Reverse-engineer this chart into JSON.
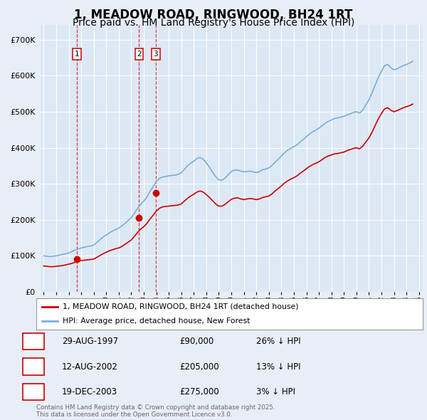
{
  "title": "1, MEADOW ROAD, RINGWOOD, BH24 1RT",
  "subtitle": "Price paid vs. HM Land Registry's House Price Index (HPI)",
  "title_fontsize": 12,
  "subtitle_fontsize": 10,
  "ytick_vals": [
    0,
    100000,
    200000,
    300000,
    400000,
    500000,
    600000,
    700000
  ],
  "ylim": [
    0,
    740000
  ],
  "sale_date_nums": [
    1997.667,
    2002.625,
    2003.958
  ],
  "sale_prices": [
    90000,
    205000,
    275000
  ],
  "sale_labels": [
    "1",
    "2",
    "3"
  ],
  "legend_label_red": "1, MEADOW ROAD, RINGWOOD, BH24 1RT (detached house)",
  "legend_label_blue": "HPI: Average price, detached house, New Forest",
  "table_rows": [
    [
      "1",
      "29-AUG-1997",
      "£90,000",
      "26% ↓ HPI"
    ],
    [
      "2",
      "12-AUG-2002",
      "£205,000",
      "13% ↓ HPI"
    ],
    [
      "3",
      "19-DEC-2003",
      "£275,000",
      "3% ↓ HPI"
    ]
  ],
  "footnote": "Contains HM Land Registry data © Crown copyright and database right 2025.\nThis data is licensed under the Open Government Licence v3.0.",
  "red_color": "#cc0000",
  "blue_color": "#7aadda",
  "bg_color": "#e8eef8",
  "plot_bg": "#dde8f5",
  "grid_color": "#ffffff",
  "hpi_dates": [
    1995.0,
    1995.25,
    1995.5,
    1995.75,
    1996.0,
    1996.25,
    1996.5,
    1996.75,
    1997.0,
    1997.25,
    1997.5,
    1997.75,
    1998.0,
    1998.25,
    1998.5,
    1998.75,
    1999.0,
    1999.25,
    1999.5,
    1999.75,
    2000.0,
    2000.25,
    2000.5,
    2000.75,
    2001.0,
    2001.25,
    2001.5,
    2001.75,
    2002.0,
    2002.25,
    2002.5,
    2002.75,
    2003.0,
    2003.25,
    2003.5,
    2003.75,
    2004.0,
    2004.25,
    2004.5,
    2004.75,
    2005.0,
    2005.25,
    2005.5,
    2005.75,
    2006.0,
    2006.25,
    2006.5,
    2006.75,
    2007.0,
    2007.25,
    2007.5,
    2007.75,
    2008.0,
    2008.25,
    2008.5,
    2008.75,
    2009.0,
    2009.25,
    2009.5,
    2009.75,
    2010.0,
    2010.25,
    2010.5,
    2010.75,
    2011.0,
    2011.25,
    2011.5,
    2011.75,
    2012.0,
    2012.25,
    2012.5,
    2012.75,
    2013.0,
    2013.25,
    2013.5,
    2013.75,
    2014.0,
    2014.25,
    2014.5,
    2014.75,
    2015.0,
    2015.25,
    2015.5,
    2015.75,
    2016.0,
    2016.25,
    2016.5,
    2016.75,
    2017.0,
    2017.25,
    2017.5,
    2017.75,
    2018.0,
    2018.25,
    2018.5,
    2018.75,
    2019.0,
    2019.25,
    2019.5,
    2019.75,
    2020.0,
    2020.25,
    2020.5,
    2020.75,
    2021.0,
    2021.25,
    2021.5,
    2021.75,
    2022.0,
    2022.25,
    2022.5,
    2022.75,
    2023.0,
    2023.25,
    2023.5,
    2023.75,
    2024.0,
    2024.25,
    2024.5
  ],
  "hpi_values": [
    100000,
    99000,
    98000,
    99000,
    100000,
    102000,
    104000,
    106000,
    108000,
    112000,
    116000,
    119000,
    122000,
    124000,
    126000,
    127000,
    130000,
    137000,
    145000,
    152000,
    158000,
    164000,
    169000,
    173000,
    177000,
    183000,
    190000,
    198000,
    206000,
    218000,
    232000,
    243000,
    252000,
    263000,
    279000,
    292000,
    306000,
    315000,
    319000,
    320000,
    322000,
    323000,
    324000,
    326000,
    331000,
    340000,
    350000,
    357000,
    363000,
    370000,
    373000,
    368000,
    358000,
    346000,
    332000,
    320000,
    311000,
    310000,
    316000,
    325000,
    334000,
    338000,
    338000,
    335000,
    333000,
    334000,
    335000,
    333000,
    331000,
    334000,
    339000,
    341000,
    344000,
    351000,
    360000,
    368000,
    377000,
    386000,
    393000,
    398000,
    403000,
    408000,
    416000,
    423000,
    431000,
    438000,
    444000,
    449000,
    454000,
    461000,
    468000,
    473000,
    477000,
    481000,
    483000,
    485000,
    487000,
    491000,
    494000,
    498000,
    500000,
    496000,
    504000,
    519000,
    533000,
    552000,
    574000,
    595000,
    612000,
    628000,
    631000,
    622000,
    616000,
    619000,
    624000,
    628000,
    631000,
    635000,
    640000
  ],
  "red_dates": [
    1995.0,
    1995.25,
    1995.5,
    1995.75,
    1996.0,
    1996.25,
    1996.5,
    1996.75,
    1997.0,
    1997.25,
    1997.5,
    1997.75,
    1998.0,
    1998.25,
    1998.5,
    1998.75,
    1999.0,
    1999.25,
    1999.5,
    1999.75,
    2000.0,
    2000.25,
    2000.5,
    2000.75,
    2001.0,
    2001.25,
    2001.5,
    2001.75,
    2002.0,
    2002.25,
    2002.5,
    2002.75,
    2003.0,
    2003.25,
    2003.5,
    2003.75,
    2004.0,
    2004.25,
    2004.5,
    2004.75,
    2005.0,
    2005.25,
    2005.5,
    2005.75,
    2006.0,
    2006.25,
    2006.5,
    2006.75,
    2007.0,
    2007.25,
    2007.5,
    2007.75,
    2008.0,
    2008.25,
    2008.5,
    2008.75,
    2009.0,
    2009.25,
    2009.5,
    2009.75,
    2010.0,
    2010.25,
    2010.5,
    2010.75,
    2011.0,
    2011.25,
    2011.5,
    2011.75,
    2012.0,
    2012.25,
    2012.5,
    2012.75,
    2013.0,
    2013.25,
    2013.5,
    2013.75,
    2014.0,
    2014.25,
    2014.5,
    2014.75,
    2015.0,
    2015.25,
    2015.5,
    2015.75,
    2016.0,
    2016.25,
    2016.5,
    2016.75,
    2017.0,
    2017.25,
    2017.5,
    2017.75,
    2018.0,
    2018.25,
    2018.5,
    2018.75,
    2019.0,
    2019.25,
    2019.5,
    2019.75,
    2020.0,
    2020.25,
    2020.5,
    2020.75,
    2021.0,
    2021.25,
    2021.5,
    2021.75,
    2022.0,
    2022.25,
    2022.5,
    2022.75,
    2023.0,
    2023.25,
    2023.5,
    2023.75,
    2024.0,
    2024.25,
    2024.5
  ],
  "red_values": [
    72000,
    71000,
    70000,
    70000,
    71000,
    72000,
    73000,
    75000,
    77000,
    79000,
    82000,
    85000,
    87000,
    88000,
    89000,
    90000,
    91000,
    96000,
    101000,
    106000,
    110000,
    114000,
    117000,
    120000,
    122000,
    126000,
    132000,
    138000,
    144000,
    154000,
    165000,
    174000,
    181000,
    190000,
    202000,
    213000,
    224000,
    232000,
    236000,
    237000,
    238000,
    239000,
    240000,
    241000,
    244000,
    252000,
    260000,
    266000,
    271000,
    277000,
    280000,
    277000,
    270000,
    262000,
    253000,
    244000,
    238000,
    238000,
    243000,
    250000,
    257000,
    260000,
    261000,
    258000,
    256000,
    258000,
    259000,
    258000,
    256000,
    258000,
    262000,
    264000,
    266000,
    272000,
    280000,
    287000,
    294000,
    302000,
    308000,
    313000,
    317000,
    322000,
    329000,
    335000,
    342000,
    348000,
    353000,
    357000,
    361000,
    367000,
    373000,
    377000,
    380000,
    383000,
    384000,
    386000,
    388000,
    392000,
    395000,
    398000,
    400000,
    397000,
    404000,
    416000,
    427000,
    443000,
    462000,
    480000,
    495000,
    508000,
    511000,
    504000,
    500000,
    503000,
    507000,
    511000,
    514000,
    517000,
    521000
  ]
}
